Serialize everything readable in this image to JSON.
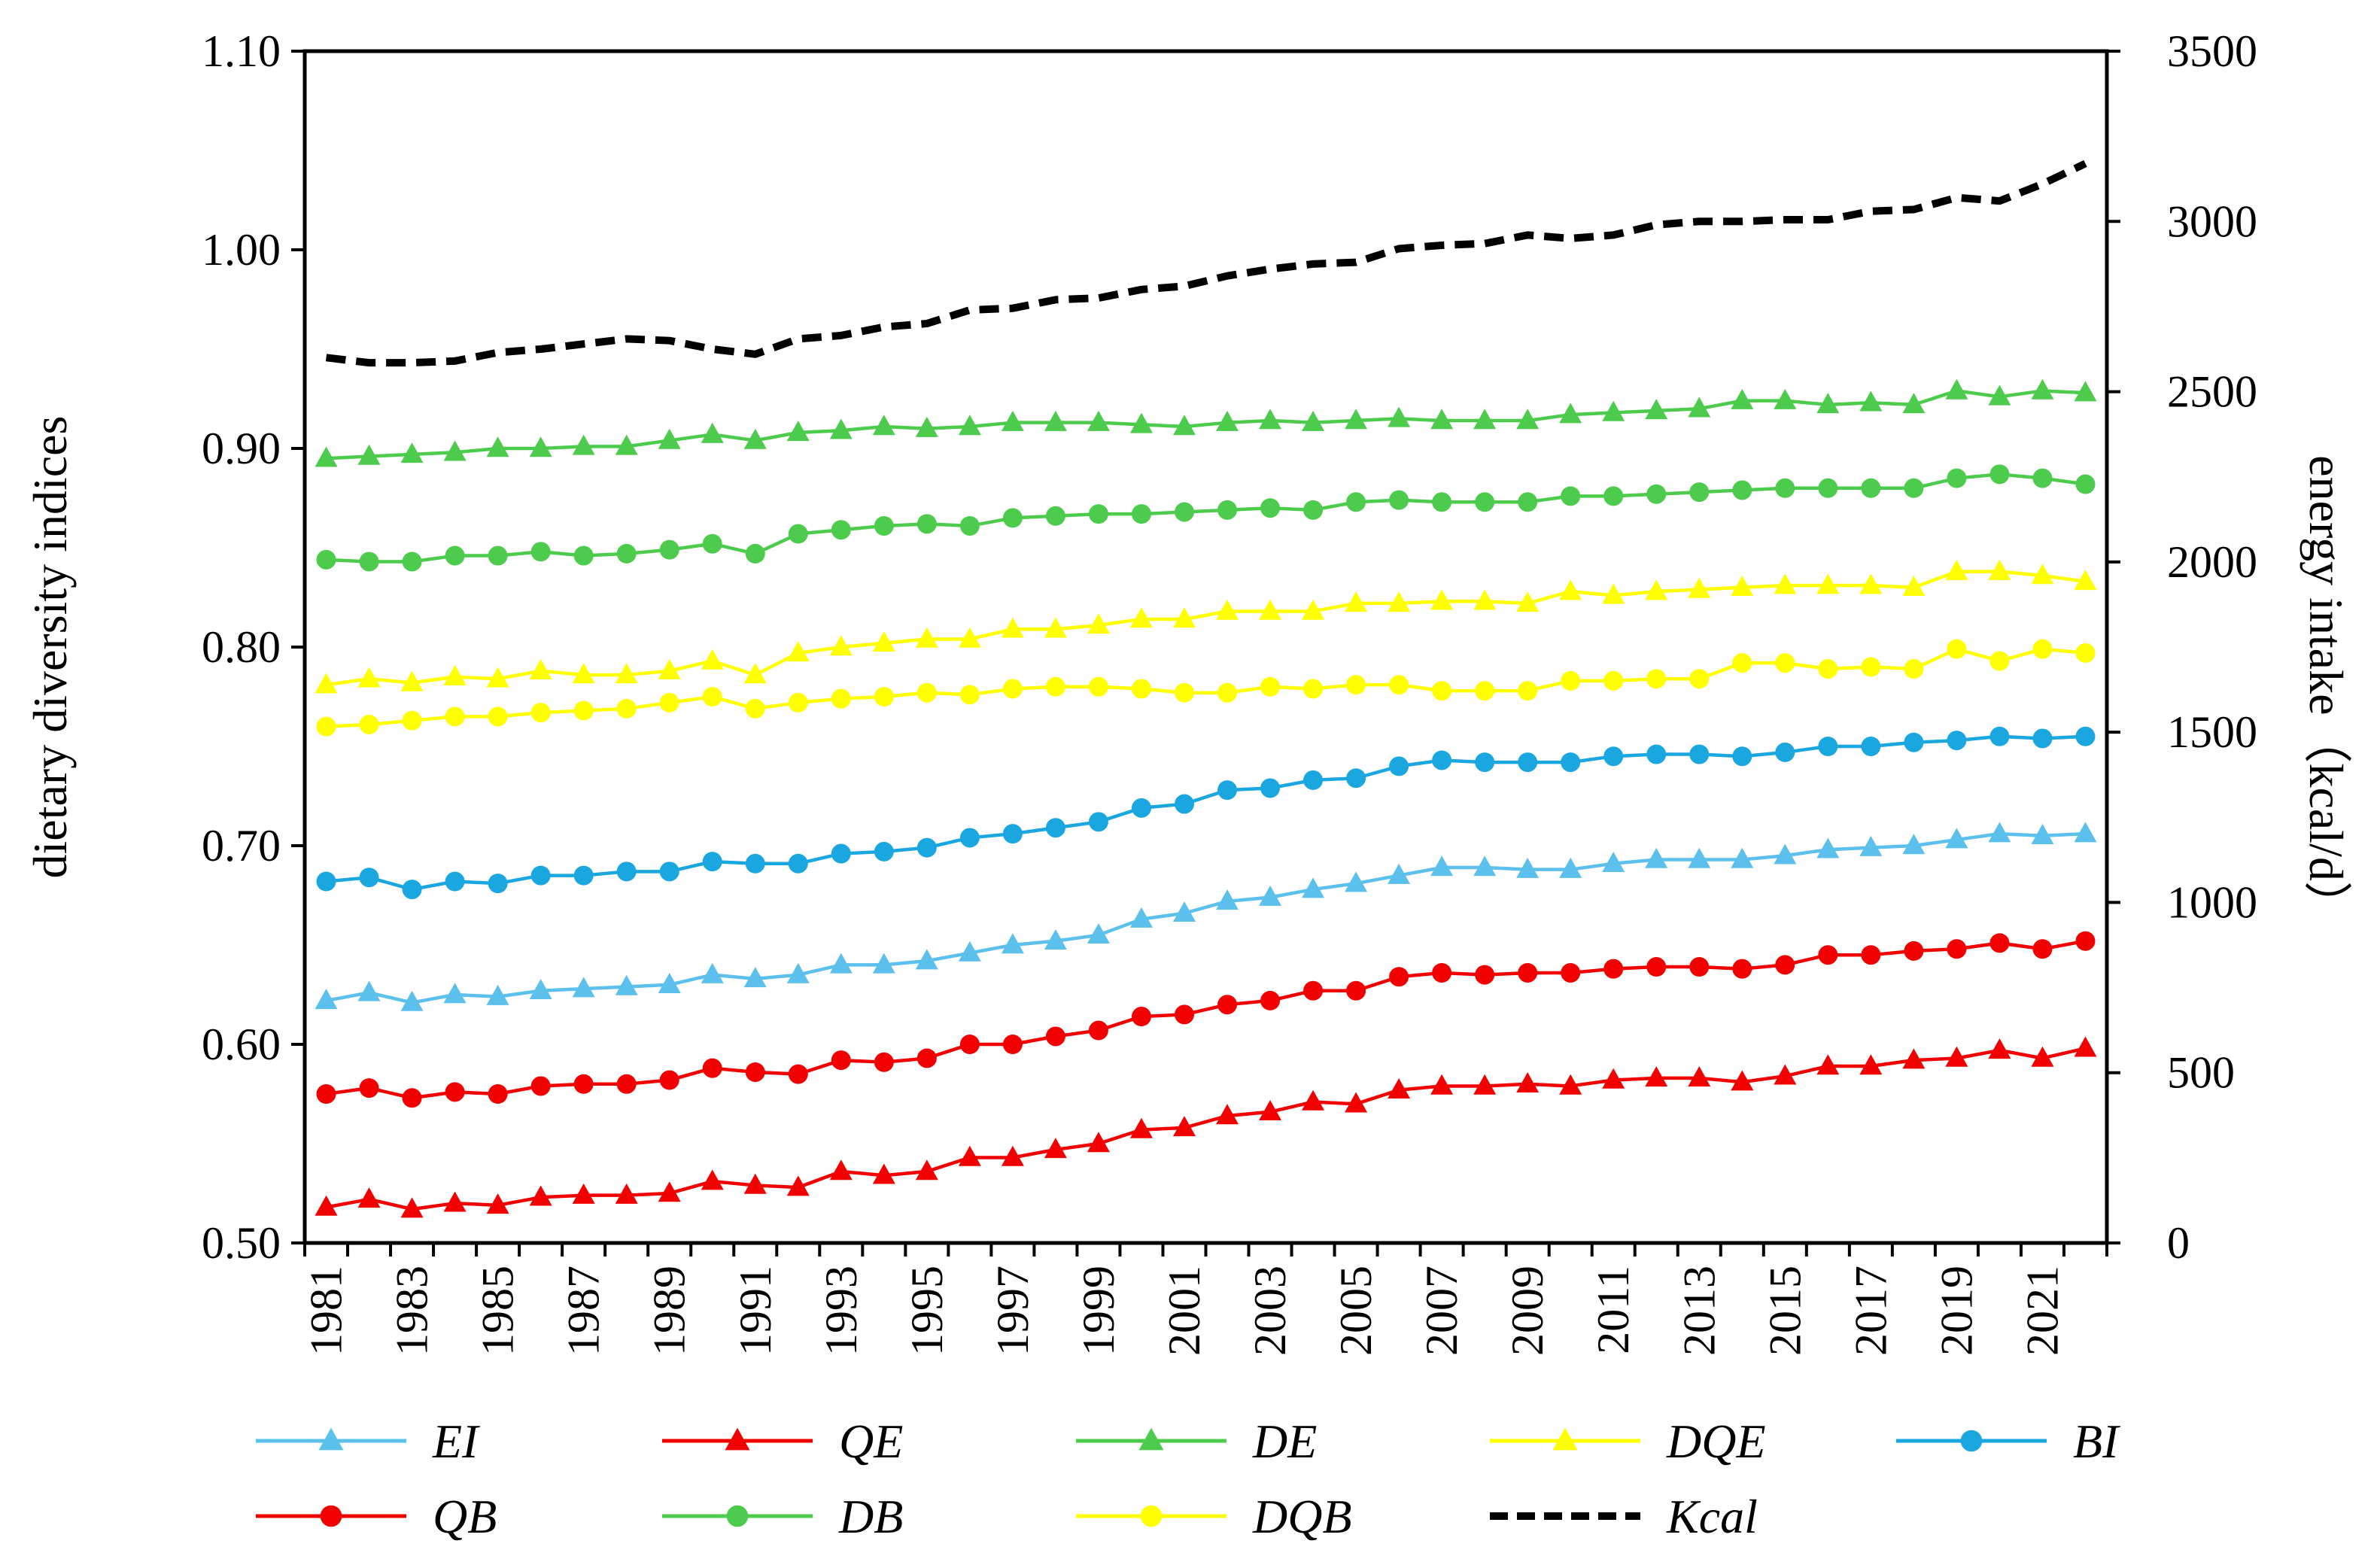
{
  "chart_data": {
    "type": "line",
    "title": "",
    "xlabel": "",
    "ylabel": "dietary diversity indices",
    "y2label": "energy intake（kcal/d）",
    "ylim": [
      0.5,
      1.1
    ],
    "y2lim": [
      0,
      3500
    ],
    "yticks": [
      "0.50",
      "0.60",
      "0.70",
      "0.80",
      "0.90",
      "1.00",
      "1.10"
    ],
    "y2ticks": [
      "0",
      "500",
      "1000",
      "1500",
      "2000",
      "2500",
      "3000",
      "3500"
    ],
    "x": [
      1981,
      1982,
      1983,
      1984,
      1985,
      1986,
      1987,
      1988,
      1989,
      1990,
      1991,
      1992,
      1993,
      1994,
      1995,
      1996,
      1997,
      1998,
      1999,
      2000,
      2001,
      2002,
      2003,
      2004,
      2005,
      2006,
      2007,
      2008,
      2009,
      2010,
      2011,
      2012,
      2013,
      2014,
      2015,
      2016,
      2017,
      2018,
      2019,
      2020,
      2021,
      2022
    ],
    "xtick_labels": [
      "1981",
      "1983",
      "1985",
      "1987",
      "1989",
      "1991",
      "1993",
      "1995",
      "1997",
      "1999",
      "2001",
      "2003",
      "2005",
      "2007",
      "2009",
      "2011",
      "2013",
      "2015",
      "2017",
      "2019",
      "2021"
    ],
    "legend_position": "bottom",
    "series": [
      {
        "name": "EI",
        "color": "#5BC0EB",
        "marker": "triangle",
        "axis": "left",
        "values": [
          0.622,
          0.626,
          0.621,
          0.625,
          0.624,
          0.627,
          0.628,
          0.629,
          0.63,
          0.635,
          0.633,
          0.635,
          0.64,
          0.64,
          0.642,
          0.646,
          0.65,
          0.652,
          0.655,
          0.663,
          0.666,
          0.672,
          0.674,
          0.678,
          0.681,
          0.685,
          0.689,
          0.689,
          0.688,
          0.688,
          0.691,
          0.693,
          0.693,
          0.693,
          0.695,
          0.698,
          0.699,
          0.7,
          0.703,
          0.706,
          0.705,
          0.706
        ]
      },
      {
        "name": "QE",
        "color": "#F20000",
        "marker": "triangle",
        "axis": "left",
        "values": [
          0.518,
          0.522,
          0.517,
          0.52,
          0.519,
          0.523,
          0.524,
          0.524,
          0.525,
          0.531,
          0.529,
          0.528,
          0.536,
          0.534,
          0.536,
          0.543,
          0.543,
          0.547,
          0.55,
          0.557,
          0.558,
          0.564,
          0.566,
          0.571,
          0.57,
          0.577,
          0.579,
          0.579,
          0.58,
          0.579,
          0.582,
          0.583,
          0.583,
          0.581,
          0.584,
          0.589,
          0.589,
          0.592,
          0.593,
          0.597,
          0.593,
          0.598
        ]
      },
      {
        "name": "DE",
        "color": "#4CCB4C",
        "marker": "triangle",
        "axis": "left",
        "values": [
          0.895,
          0.896,
          0.897,
          0.898,
          0.9,
          0.9,
          0.901,
          0.901,
          0.904,
          0.907,
          0.904,
          0.908,
          0.909,
          0.911,
          0.91,
          0.911,
          0.913,
          0.913,
          0.913,
          0.912,
          0.911,
          0.913,
          0.914,
          0.913,
          0.914,
          0.915,
          0.914,
          0.914,
          0.914,
          0.917,
          0.918,
          0.919,
          0.92,
          0.924,
          0.924,
          0.922,
          0.923,
          0.922,
          0.929,
          0.926,
          0.929,
          0.928
        ]
      },
      {
        "name": "DQE",
        "color": "#FFFF00",
        "marker": "triangle",
        "axis": "left",
        "values": [
          0.781,
          0.784,
          0.782,
          0.785,
          0.784,
          0.788,
          0.786,
          0.786,
          0.788,
          0.793,
          0.786,
          0.797,
          0.8,
          0.802,
          0.804,
          0.804,
          0.809,
          0.809,
          0.811,
          0.814,
          0.814,
          0.818,
          0.818,
          0.818,
          0.822,
          0.822,
          0.823,
          0.823,
          0.822,
          0.828,
          0.826,
          0.828,
          0.829,
          0.83,
          0.831,
          0.831,
          0.831,
          0.83,
          0.838,
          0.838,
          0.836,
          0.833
        ]
      },
      {
        "name": "BI",
        "color": "#1AA7E0",
        "marker": "circle",
        "axis": "left",
        "values": [
          0.682,
          0.684,
          0.678,
          0.682,
          0.681,
          0.685,
          0.685,
          0.687,
          0.687,
          0.692,
          0.691,
          0.691,
          0.696,
          0.697,
          0.699,
          0.704,
          0.706,
          0.709,
          0.712,
          0.719,
          0.721,
          0.728,
          0.729,
          0.733,
          0.734,
          0.74,
          0.743,
          0.742,
          0.742,
          0.742,
          0.745,
          0.746,
          0.746,
          0.745,
          0.747,
          0.75,
          0.75,
          0.752,
          0.753,
          0.755,
          0.754,
          0.755
        ]
      },
      {
        "name": "QB",
        "color": "#F20000",
        "marker": "circle",
        "axis": "left",
        "values": [
          0.575,
          0.578,
          0.573,
          0.576,
          0.575,
          0.579,
          0.58,
          0.58,
          0.582,
          0.588,
          0.586,
          0.585,
          0.592,
          0.591,
          0.593,
          0.6,
          0.6,
          0.604,
          0.607,
          0.614,
          0.615,
          0.62,
          0.622,
          0.627,
          0.627,
          0.634,
          0.636,
          0.635,
          0.636,
          0.636,
          0.638,
          0.639,
          0.639,
          0.638,
          0.64,
          0.645,
          0.645,
          0.647,
          0.648,
          0.651,
          0.648,
          0.652
        ]
      },
      {
        "name": "DB",
        "color": "#4CCB4C",
        "marker": "circle",
        "axis": "left",
        "values": [
          0.844,
          0.843,
          0.843,
          0.846,
          0.846,
          0.848,
          0.846,
          0.847,
          0.849,
          0.852,
          0.847,
          0.857,
          0.859,
          0.861,
          0.862,
          0.861,
          0.865,
          0.866,
          0.867,
          0.867,
          0.868,
          0.869,
          0.87,
          0.869,
          0.873,
          0.874,
          0.873,
          0.873,
          0.873,
          0.876,
          0.876,
          0.877,
          0.878,
          0.879,
          0.88,
          0.88,
          0.88,
          0.88,
          0.885,
          0.887,
          0.885,
          0.882
        ]
      },
      {
        "name": "DQB",
        "color": "#FFFF00",
        "marker": "circle",
        "axis": "left",
        "values": [
          0.76,
          0.761,
          0.763,
          0.765,
          0.765,
          0.767,
          0.768,
          0.769,
          0.772,
          0.775,
          0.769,
          0.772,
          0.774,
          0.775,
          0.777,
          0.776,
          0.779,
          0.78,
          0.78,
          0.779,
          0.777,
          0.777,
          0.78,
          0.779,
          0.781,
          0.781,
          0.778,
          0.778,
          0.778,
          0.783,
          0.783,
          0.784,
          0.784,
          0.792,
          0.792,
          0.789,
          0.79,
          0.789,
          0.799,
          0.793,
          0.799,
          0.797
        ]
      },
      {
        "name": "Kcal",
        "color": "#000000",
        "marker": "dashed",
        "axis": "right",
        "values": [
          2600,
          2585,
          2585,
          2590,
          2615,
          2625,
          2640,
          2655,
          2650,
          2625,
          2610,
          2655,
          2665,
          2690,
          2700,
          2740,
          2745,
          2770,
          2775,
          2800,
          2810,
          2840,
          2860,
          2875,
          2880,
          2920,
          2930,
          2935,
          2960,
          2950,
          2960,
          2990,
          3000,
          3000,
          3005,
          3005,
          3030,
          3035,
          3070,
          3060,
          3110,
          3170
        ]
      }
    ]
  }
}
